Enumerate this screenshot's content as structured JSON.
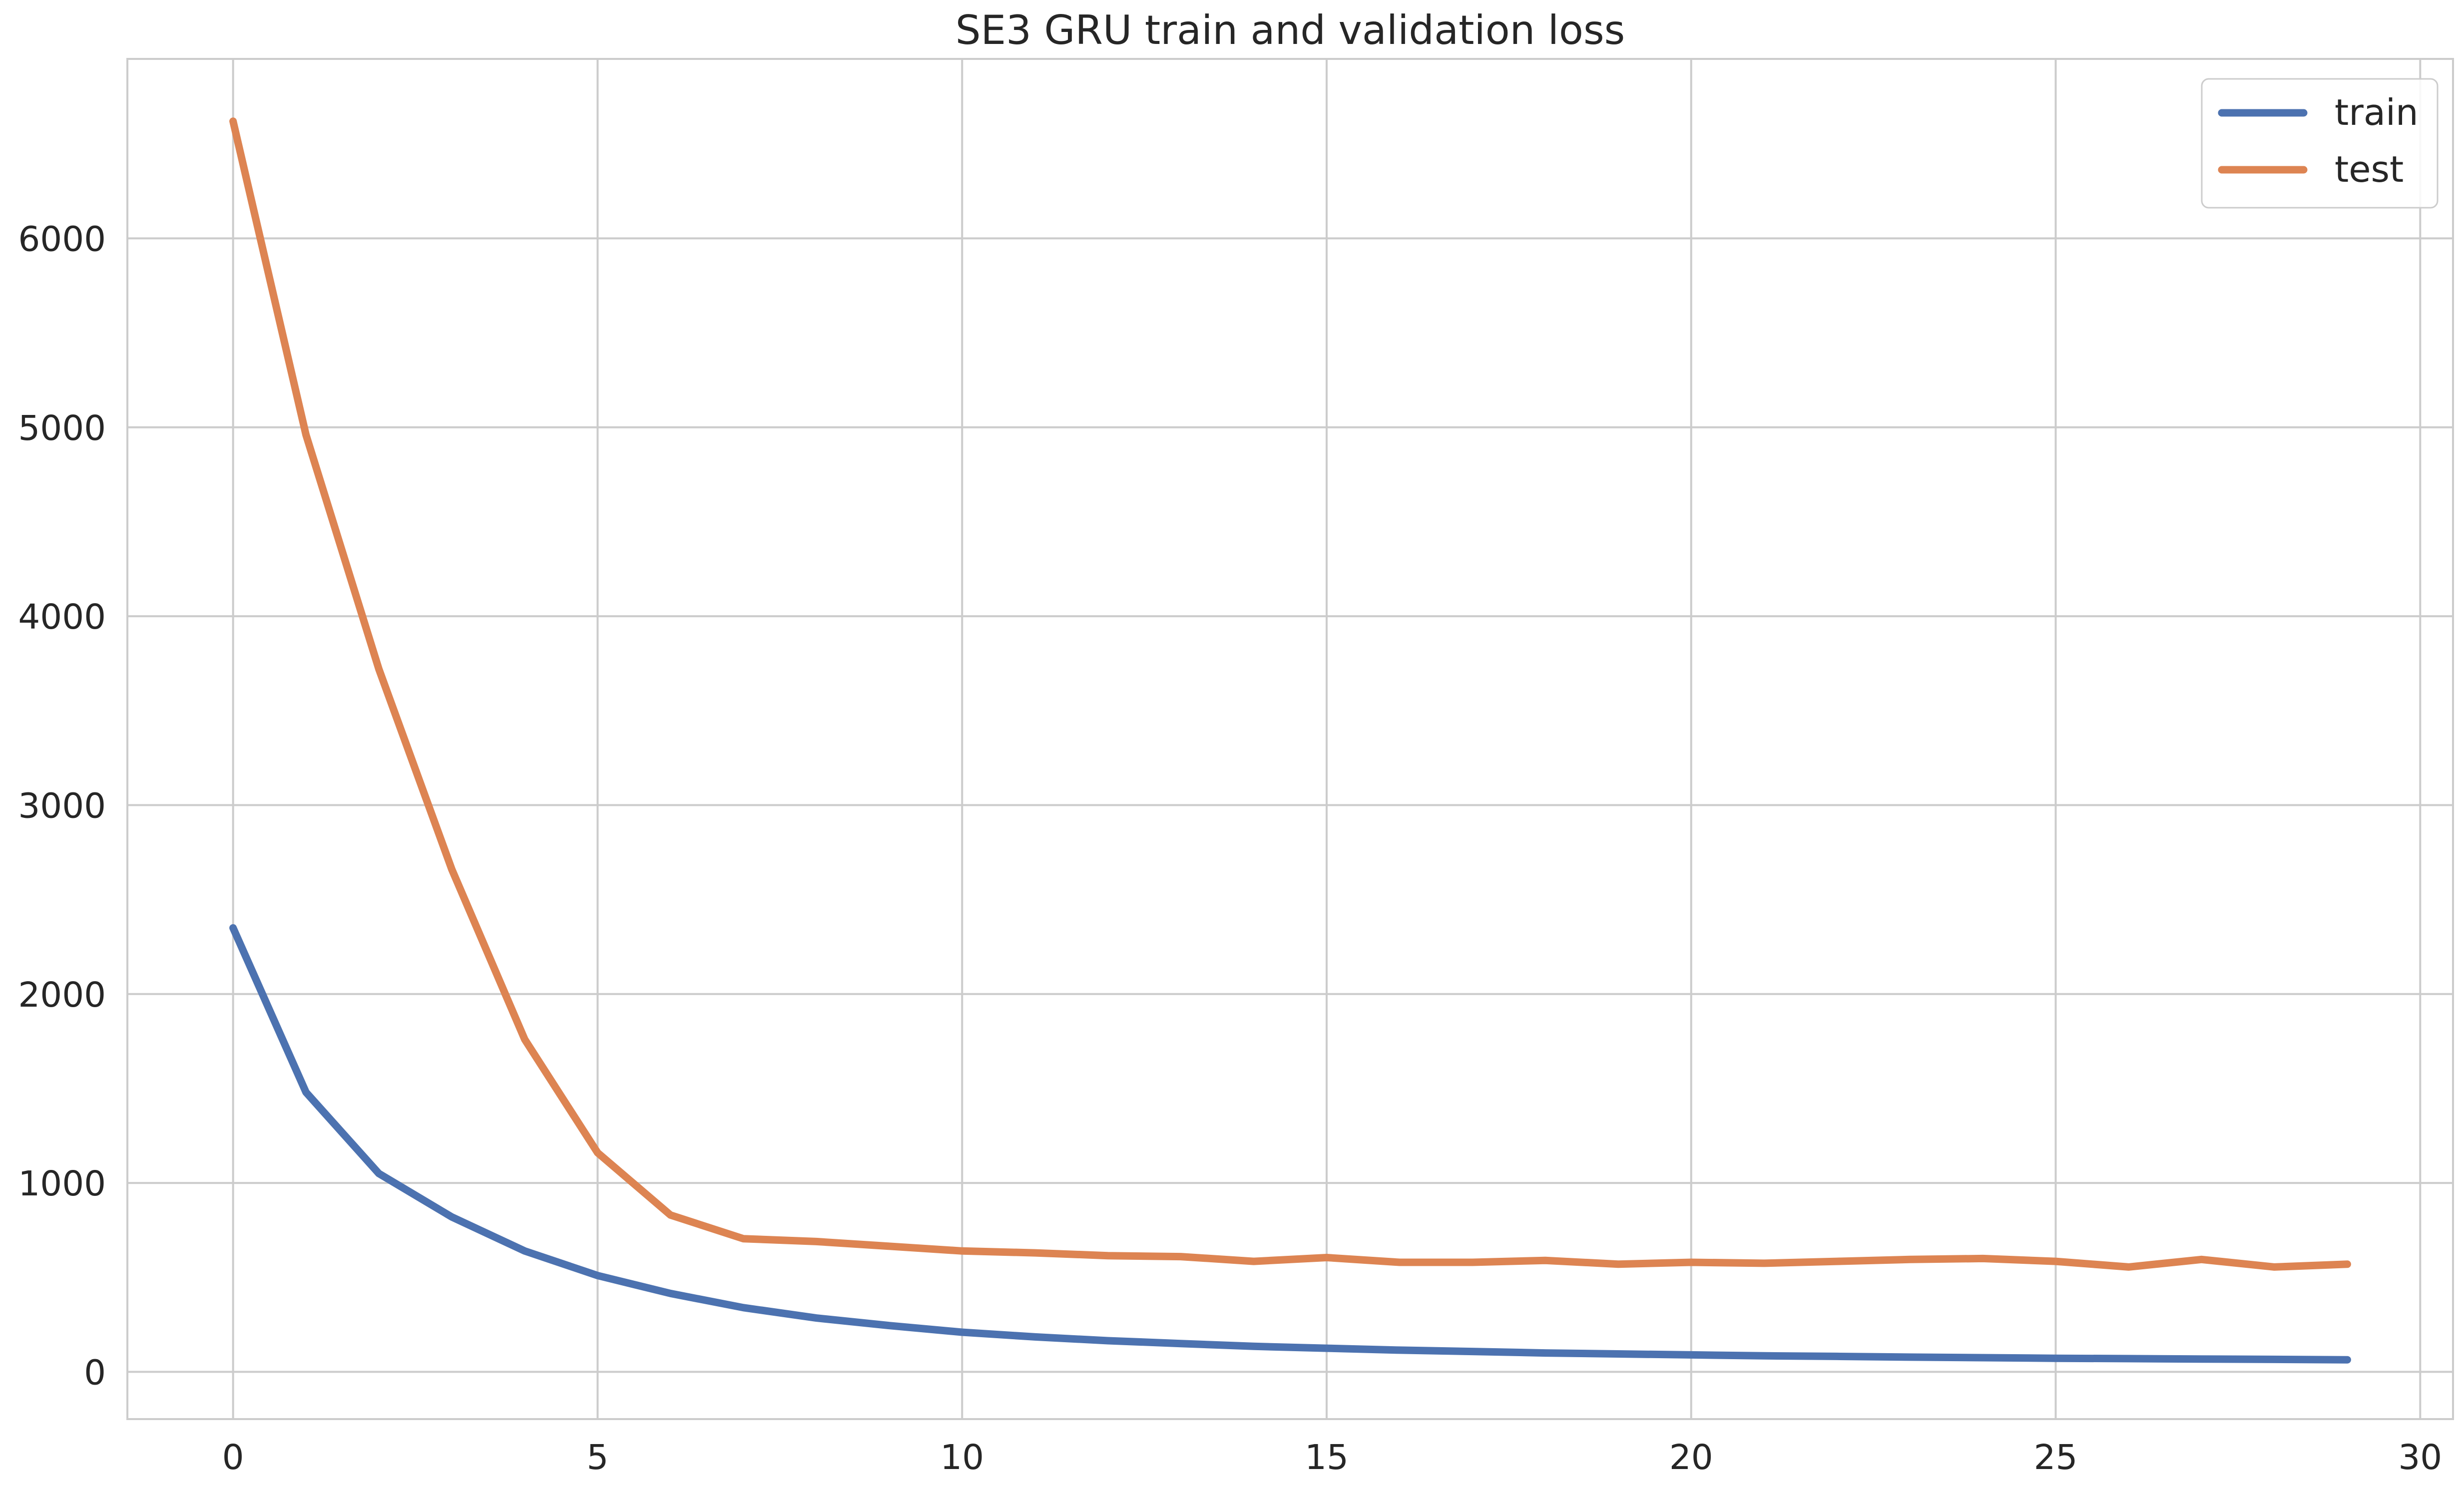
{
  "chart_data": {
    "type": "line",
    "title": "SE3 GRU train and validation loss",
    "xlabel": "",
    "ylabel": "",
    "xlim": [
      -1.45,
      30.45
    ],
    "ylim": [
      -250,
      6950
    ],
    "x_ticks": [
      0,
      5,
      10,
      15,
      20,
      25,
      30
    ],
    "y_ticks": [
      0,
      1000,
      2000,
      3000,
      4000,
      5000,
      6000
    ],
    "grid": true,
    "legend_position": "top-right",
    "x": [
      0,
      1,
      2,
      3,
      4,
      5,
      6,
      7,
      8,
      9,
      10,
      11,
      12,
      13,
      14,
      15,
      16,
      17,
      18,
      19,
      20,
      21,
      22,
      23,
      24,
      25,
      26,
      27,
      28,
      29
    ],
    "series": [
      {
        "name": "train",
        "color": "#4c72b0",
        "values": [
          2350,
          1480,
          1050,
          820,
          640,
          510,
          415,
          340,
          285,
          245,
          210,
          185,
          165,
          150,
          135,
          125,
          115,
          108,
          100,
          95,
          90,
          85,
          82,
          78,
          75,
          72,
          70,
          68,
          66,
          64
        ]
      },
      {
        "name": "test",
        "color": "#dd8452",
        "values": [
          6620,
          4960,
          3720,
          2660,
          1760,
          1160,
          830,
          705,
          690,
          665,
          640,
          630,
          615,
          610,
          585,
          605,
          580,
          580,
          590,
          570,
          580,
          575,
          585,
          595,
          600,
          585,
          555,
          595,
          555,
          570
        ]
      }
    ]
  }
}
